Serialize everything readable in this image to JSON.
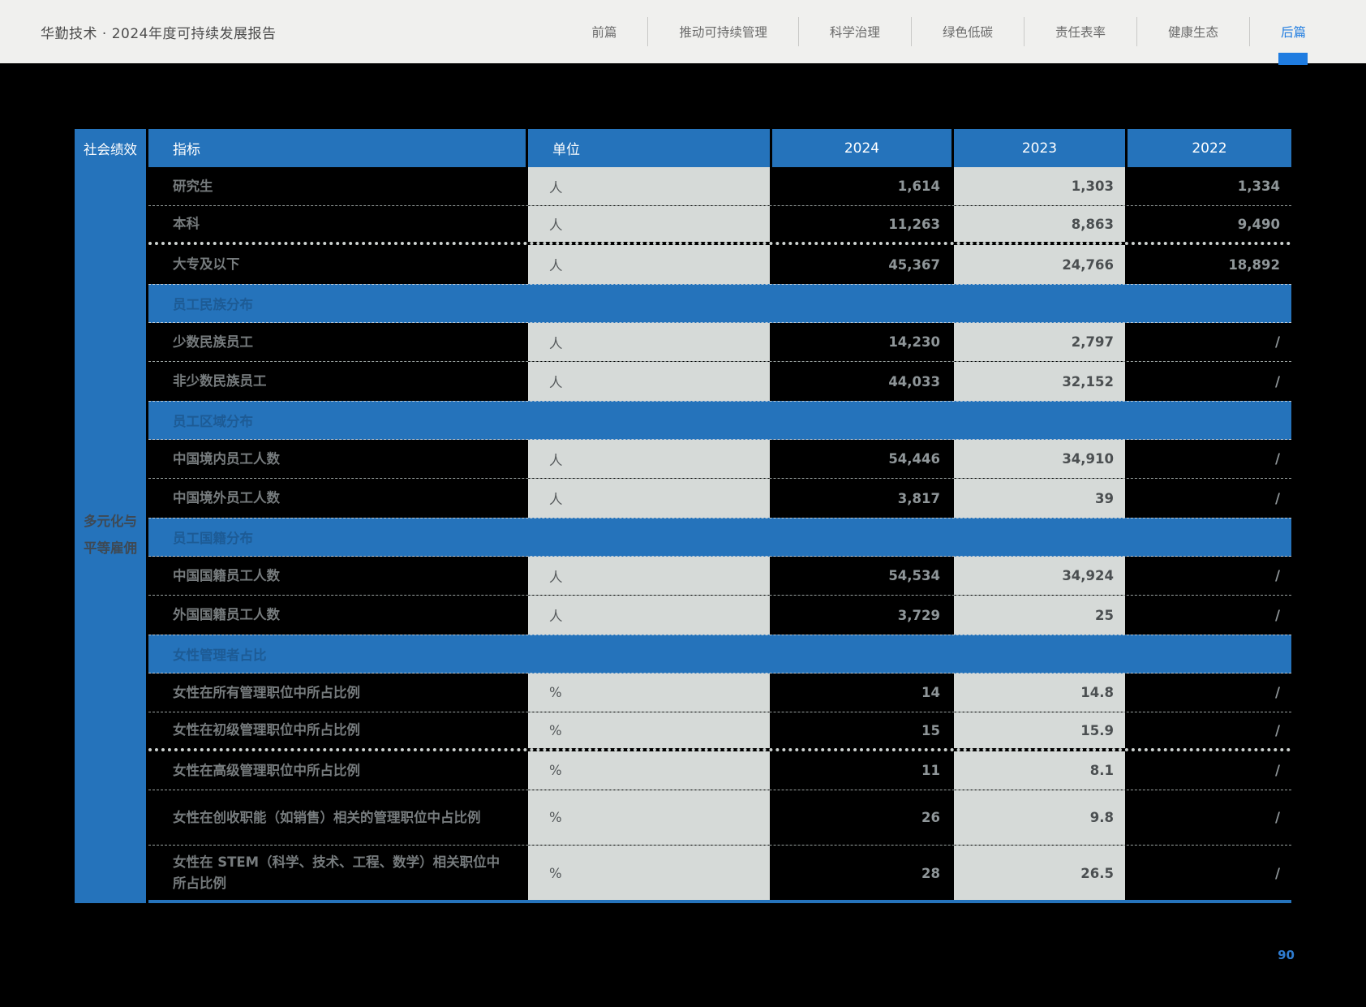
{
  "header": {
    "title": "华勤技术 · 2024年度可持续发展报告",
    "nav": [
      {
        "label": "前篇",
        "active": false
      },
      {
        "label": "推动可持续管理",
        "active": false
      },
      {
        "label": "科学治理",
        "active": false
      },
      {
        "label": "绿色低碳",
        "active": false
      },
      {
        "label": "责任表率",
        "active": false
      },
      {
        "label": "健康生态",
        "active": false
      },
      {
        "label": "后篇",
        "active": true
      }
    ]
  },
  "table": {
    "corner_label": "社会绩效",
    "sidebar_lines": [
      "多元化与",
      "平等雇佣"
    ],
    "columns": [
      "指标",
      "单位",
      "2024",
      "2023",
      "2022"
    ],
    "rows": [
      {
        "type": "data",
        "indicator": "研究生",
        "unit": "人",
        "v2024": "1,614",
        "v2023": "1,303",
        "v2022": "1,334",
        "divider": "dashed"
      },
      {
        "type": "data",
        "indicator": "本科",
        "unit": "人",
        "v2024": "11,263",
        "v2023": "8,863",
        "v2022": "9,490",
        "divider": "thick"
      },
      {
        "type": "data",
        "indicator": "大专及以下",
        "unit": "人",
        "v2024": "45,367",
        "v2023": "24,766",
        "v2022": "18,892",
        "divider": "none"
      },
      {
        "type": "section",
        "label": "员工民族分布"
      },
      {
        "type": "data",
        "indicator": "少数民族员工",
        "unit": "人",
        "v2024": "14,230",
        "v2023": "2,797",
        "v2022": "/",
        "divider": "dashed"
      },
      {
        "type": "data",
        "indicator": "非少数民族员工",
        "unit": "人",
        "v2024": "44,033",
        "v2023": "32,152",
        "v2022": "/",
        "divider": "none"
      },
      {
        "type": "section",
        "label": "员工区域分布"
      },
      {
        "type": "data",
        "indicator": "中国境内员工人数",
        "unit": "人",
        "v2024": "54,446",
        "v2023": "34,910",
        "v2022": "/",
        "divider": "dashed"
      },
      {
        "type": "data",
        "indicator": "中国境外员工人数",
        "unit": "人",
        "v2024": "3,817",
        "v2023": "39",
        "v2022": "/",
        "divider": "none"
      },
      {
        "type": "section",
        "label": "员工国籍分布"
      },
      {
        "type": "data",
        "indicator": "中国国籍员工人数",
        "unit": "人",
        "v2024": "54,534",
        "v2023": "34,924",
        "v2022": "/",
        "divider": "dashed"
      },
      {
        "type": "data",
        "indicator": "外国国籍员工人数",
        "unit": "人",
        "v2024": "3,729",
        "v2023": "25",
        "v2022": "/",
        "divider": "none"
      },
      {
        "type": "section",
        "label": "女性管理者占比"
      },
      {
        "type": "data",
        "indicator": "女性在所有管理职位中所占比例",
        "unit": "%",
        "v2024": "14",
        "v2023": "14.8",
        "v2022": "/",
        "divider": "dashed"
      },
      {
        "type": "data",
        "indicator": "女性在初级管理职位中所占比例",
        "unit": "%",
        "v2024": "15",
        "v2023": "15.9",
        "v2022": "/",
        "divider": "thick"
      },
      {
        "type": "data",
        "indicator": "女性在高级管理职位中所占比例",
        "unit": "%",
        "v2024": "11",
        "v2023": "8.1",
        "v2022": "/",
        "divider": "dashed"
      },
      {
        "type": "data",
        "indicator": "女性在创收职能（如销售）相关的管理职位中占比例",
        "unit": "%",
        "v2024": "26",
        "v2023": "9.8",
        "v2022": "/",
        "divider": "dashed",
        "tall": true
      },
      {
        "type": "data",
        "indicator": "女性在 STEM（科学、技术、工程、数学）相关职位中所占比例",
        "unit": "%",
        "v2024": "28",
        "v2023": "26.5",
        "v2022": "/",
        "divider": "none",
        "tall": true
      }
    ]
  },
  "footer": {
    "page_number": "90"
  },
  "colors": {
    "table_blue": "#2573bb",
    "accent_blue": "#1f7ce0",
    "light_cell": "#d6dad8",
    "topbar_bg": "#f0f0ee"
  }
}
